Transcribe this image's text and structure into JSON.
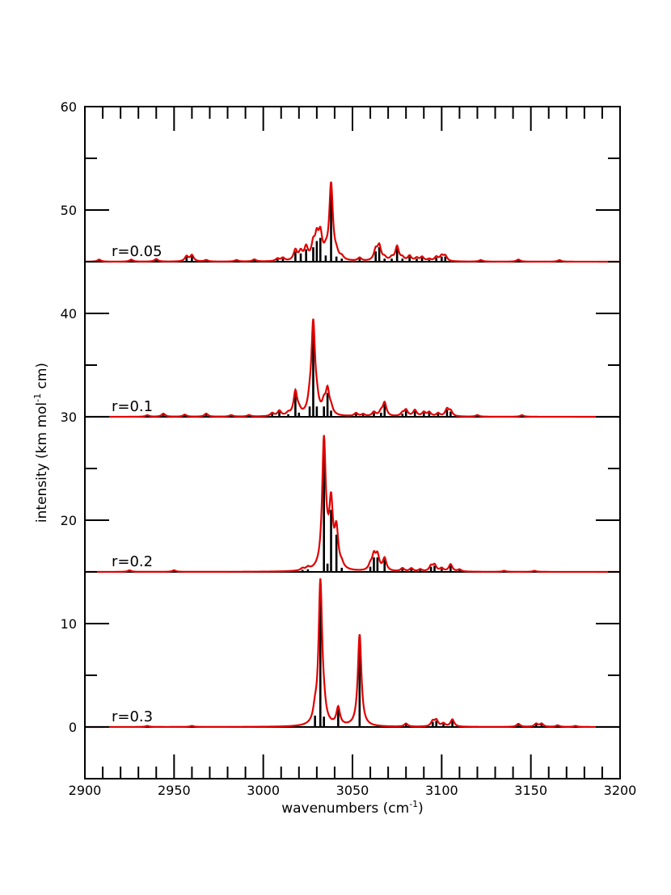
{
  "chart_data": {
    "type": "line",
    "xlabel": "wavenumbers (cm",
    "xlabel_sup": "-1",
    "xlabel_end": ")",
    "ylabel": "intensity (km mol",
    "ylabel_sup": "-1",
    "ylabel_end": " cm)",
    "xlim": [
      2900,
      3200
    ],
    "ylim": [
      -5,
      60
    ],
    "x_ticks": [
      2900,
      2950,
      3000,
      3050,
      3100,
      3150,
      3200
    ],
    "y_ticks": [
      0,
      10,
      20,
      30,
      40,
      50,
      60
    ],
    "grid": false,
    "legend": "none",
    "colors": {
      "convolved": "#e00000",
      "sticks": "#000000"
    },
    "panels": [
      {
        "label": "r=0.05",
        "baseline": 45,
        "sticks": [
          [
            2908,
            0.2
          ],
          [
            2926,
            0.2
          ],
          [
            2940,
            0.25
          ],
          [
            2957,
            0.5
          ],
          [
            2960,
            0.6
          ],
          [
            2968,
            0.15
          ],
          [
            2985,
            0.15
          ],
          [
            2995,
            0.2
          ],
          [
            3008,
            0.25
          ],
          [
            3011,
            0.3
          ],
          [
            3018,
            1.0
          ],
          [
            3021,
            0.8
          ],
          [
            3024,
            1.2
          ],
          [
            3028,
            1.4
          ],
          [
            3030,
            2.0
          ],
          [
            3032,
            2.3
          ],
          [
            3035,
            0.6
          ],
          [
            3038,
            7.4
          ],
          [
            3041,
            0.5
          ],
          [
            3044,
            0.3
          ],
          [
            3054,
            0.3
          ],
          [
            3063,
            1.0
          ],
          [
            3065,
            1.4
          ],
          [
            3068,
            0.3
          ],
          [
            3072,
            0.3
          ],
          [
            3075,
            1.4
          ],
          [
            3078,
            0.3
          ],
          [
            3082,
            0.5
          ],
          [
            3086,
            0.3
          ],
          [
            3089,
            0.4
          ],
          [
            3093,
            0.2
          ],
          [
            3097,
            0.4
          ],
          [
            3100,
            0.5
          ],
          [
            3102,
            0.5
          ],
          [
            3122,
            0.15
          ],
          [
            3143,
            0.2
          ],
          [
            3166,
            0.15
          ]
        ]
      },
      {
        "label": "r=0.1",
        "baseline": 30,
        "sticks": [
          [
            2935,
            0.15
          ],
          [
            2944,
            0.3
          ],
          [
            2956,
            0.2
          ],
          [
            2968,
            0.3
          ],
          [
            2982,
            0.15
          ],
          [
            2992,
            0.15
          ],
          [
            3005,
            0.3
          ],
          [
            3009,
            0.5
          ],
          [
            3014,
            0.25
          ],
          [
            3018,
            2.3
          ],
          [
            3020,
            0.4
          ],
          [
            3026,
            1.0
          ],
          [
            3028,
            8.8
          ],
          [
            3030,
            1.0
          ],
          [
            3034,
            1.0
          ],
          [
            3036,
            2.3
          ],
          [
            3038,
            0.6
          ],
          [
            3052,
            0.3
          ],
          [
            3056,
            0.2
          ],
          [
            3062,
            0.4
          ],
          [
            3066,
            0.4
          ],
          [
            3068,
            1.3
          ],
          [
            3078,
            0.3
          ],
          [
            3080,
            0.6
          ],
          [
            3085,
            0.6
          ],
          [
            3090,
            0.4
          ],
          [
            3093,
            0.4
          ],
          [
            3098,
            0.3
          ],
          [
            3103,
            0.7
          ],
          [
            3105,
            0.5
          ],
          [
            3120,
            0.15
          ],
          [
            3145,
            0.15
          ]
        ]
      },
      {
        "label": "r=0.2",
        "baseline": 15,
        "sticks": [
          [
            2925,
            0.15
          ],
          [
            2950,
            0.15
          ],
          [
            3022,
            0.2
          ],
          [
            3025,
            0.25
          ],
          [
            3034,
            12.4
          ],
          [
            3036,
            0.8
          ],
          [
            3038,
            6.0
          ],
          [
            3041,
            3.6
          ],
          [
            3044,
            0.4
          ],
          [
            3060,
            0.5
          ],
          [
            3062,
            1.4
          ],
          [
            3064,
            1.4
          ],
          [
            3068,
            1.2
          ],
          [
            3078,
            0.3
          ],
          [
            3083,
            0.3
          ],
          [
            3088,
            0.2
          ],
          [
            3094,
            0.5
          ],
          [
            3096,
            0.6
          ],
          [
            3100,
            0.3
          ],
          [
            3105,
            0.7
          ],
          [
            3110,
            0.2
          ],
          [
            3135,
            0.1
          ],
          [
            3152,
            0.1
          ]
        ]
      },
      {
        "label": "r=0.3",
        "baseline": 0,
        "sticks": [
          [
            2935,
            0.1
          ],
          [
            2960,
            0.1
          ],
          [
            3029,
            1.1
          ],
          [
            3032,
            13.9
          ],
          [
            3034,
            1.0
          ],
          [
            3042,
            1.7
          ],
          [
            3054,
            8.9
          ],
          [
            3080,
            0.3
          ],
          [
            3095,
            0.5
          ],
          [
            3097,
            0.6
          ],
          [
            3101,
            0.3
          ],
          [
            3106,
            0.7
          ],
          [
            3143,
            0.3
          ],
          [
            3153,
            0.3
          ],
          [
            3156,
            0.3
          ],
          [
            3165,
            0.15
          ],
          [
            3175,
            0.1
          ]
        ]
      }
    ]
  }
}
